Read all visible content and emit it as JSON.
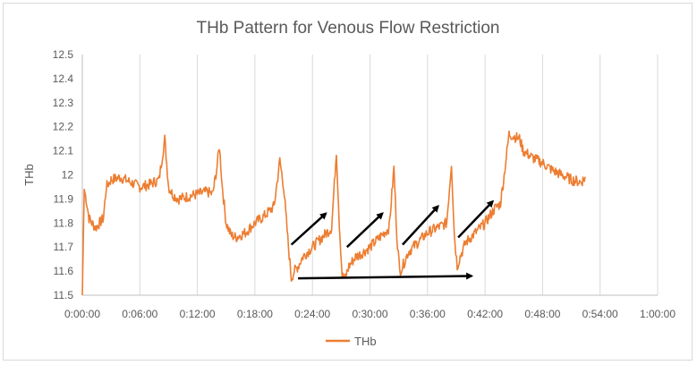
{
  "chart_data": {
    "type": "line",
    "title": "THb Pattern for Venous Flow Restriction",
    "xlabel": "",
    "ylabel": "THb",
    "x_tick_labels": [
      "0:00:00",
      "0:06:00",
      "0:12:00",
      "0:18:00",
      "0:24:00",
      "0:30:00",
      "0:36:00",
      "0:42:00",
      "0:48:00",
      "0:54:00",
      "1:00:00"
    ],
    "x_ticks_minutes": [
      0,
      6,
      12,
      18,
      24,
      30,
      36,
      42,
      48,
      54,
      60
    ],
    "xlim_minutes": [
      0,
      60
    ],
    "y_tick_labels": [
      "11.5",
      "11.6",
      "11.7",
      "11.8",
      "11.9",
      "12",
      "12.1",
      "12.2",
      "12.3",
      "12.4",
      "12.5"
    ],
    "ylim": [
      11.5,
      12.5
    ],
    "grid": "vertical",
    "legend": {
      "position": "bottom",
      "entries": [
        "THb"
      ]
    },
    "series": [
      {
        "name": "THb",
        "color": "#ED7D31",
        "x_minutes": [
          0,
          0.2,
          0.4,
          0.7,
          1.0,
          1.4,
          1.8,
          2.2,
          2.5,
          3.0,
          4.0,
          5.0,
          6.0,
          7.0,
          8.0,
          8.6,
          9.0,
          9.4,
          10.0,
          11.0,
          12.0,
          13.0,
          13.6,
          14.0,
          14.3,
          14.6,
          15.0,
          15.5,
          16.0,
          17.0,
          18.0,
          19.0,
          20.0,
          20.6,
          21.0,
          21.5,
          21.8,
          22.1,
          22.5,
          23.0,
          24.0,
          25.0,
          26.0,
          26.5,
          26.8,
          27.1,
          27.4,
          27.8,
          28.5,
          29.0,
          30.0,
          31.0,
          32.0,
          32.5,
          32.8,
          33.1,
          33.4,
          34.0,
          35.0,
          36.0,
          37.0,
          38.0,
          38.5,
          38.8,
          39.1,
          39.4,
          40.0,
          41.0,
          42.0,
          43.0,
          43.6,
          44.0,
          44.5,
          45.0,
          45.6,
          46.0,
          47.0,
          48.0,
          49.0,
          50.0,
          51.0,
          52.0,
          52.5
        ],
        "values": [
          11.5,
          11.94,
          11.9,
          11.82,
          11.8,
          11.78,
          11.8,
          11.82,
          11.95,
          11.98,
          11.99,
          11.97,
          11.95,
          11.96,
          11.98,
          12.15,
          11.95,
          11.92,
          11.9,
          11.91,
          11.92,
          11.93,
          11.92,
          12.02,
          12.12,
          11.95,
          11.8,
          11.75,
          11.74,
          11.76,
          11.8,
          11.83,
          11.87,
          12.06,
          11.95,
          11.7,
          11.57,
          11.6,
          11.62,
          11.66,
          11.7,
          11.74,
          11.78,
          12.1,
          11.8,
          11.58,
          11.57,
          11.62,
          11.66,
          11.67,
          11.7,
          11.74,
          11.78,
          12.03,
          11.75,
          11.6,
          11.62,
          11.68,
          11.72,
          11.76,
          11.78,
          11.8,
          12.05,
          11.75,
          11.62,
          11.66,
          11.72,
          11.76,
          11.8,
          11.86,
          11.88,
          12.0,
          12.17,
          12.16,
          12.15,
          12.1,
          12.07,
          12.05,
          12.02,
          12.0,
          11.98,
          11.97,
          11.99
        ]
      }
    ],
    "annotations": [
      {
        "type": "arrow",
        "from": [
          21.8,
          11.71
        ],
        "to": [
          25.4,
          11.84
        ]
      },
      {
        "type": "arrow",
        "from": [
          27.6,
          11.7
        ],
        "to": [
          31.3,
          11.84
        ]
      },
      {
        "type": "arrow",
        "from": [
          33.4,
          11.71
        ],
        "to": [
          37.1,
          11.87
        ]
      },
      {
        "type": "arrow",
        "from": [
          39.2,
          11.74
        ],
        "to": [
          42.8,
          11.89
        ]
      },
      {
        "type": "arrow",
        "from": [
          22.5,
          11.57
        ],
        "to": [
          40.6,
          11.58
        ]
      }
    ]
  }
}
